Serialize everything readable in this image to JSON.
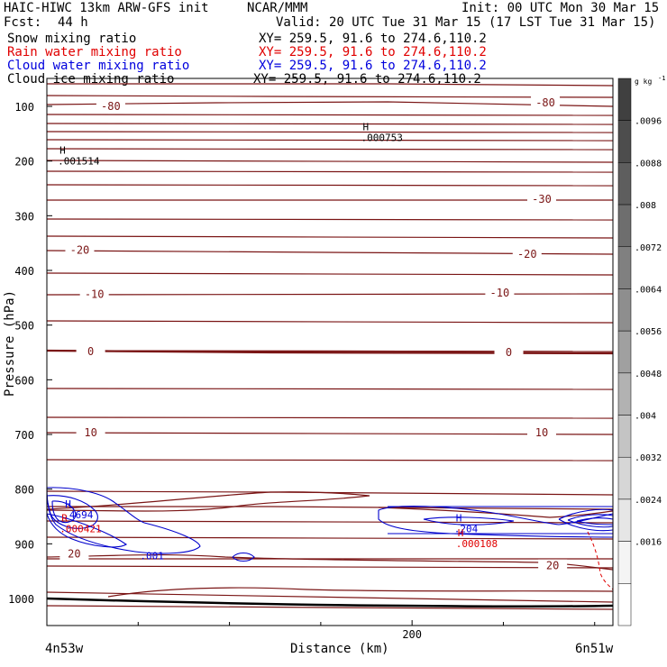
{
  "header": {
    "model": "HAIC-HIWC 13km ARW-GFS init",
    "org": "NCAR/MMM",
    "init": "Init: 00 UTC Mon 30 Mar 15",
    "fcst": "Fcst:",
    "fcst_hours": "44 h",
    "valid": "Valid: 20 UTC Tue 31 Mar 15 (17 LST Tue 31 Mar 15)"
  },
  "fields": [
    {
      "label": "Snow mixing ratio",
      "xy": "XY= 259.5, 91.6 to 274.6,110.2",
      "color": "#000000"
    },
    {
      "label": "Rain water mixing ratio",
      "xy": "XY= 259.5, 91.6 to 274.6,110.2",
      "color": "#e00000"
    },
    {
      "label": "Cloud water mixing ratio",
      "xy": "XY= 259.5, 91.6 to 274.6,110.2",
      "color": "#0000dd"
    },
    {
      "label": "Cloud ice mixing ratio",
      "xy": "XY= 259.5, 91.6 to 274.6,110.2",
      "color": "#000000"
    }
  ],
  "chart_data": {
    "type": "contour",
    "xlabel": "Distance (km)",
    "ylabel": "Pressure (hPa)",
    "x_ticks": [
      0,
      200
    ],
    "x_tick_labels": [
      "",
      "200"
    ],
    "xlim": [
      0,
      310
    ],
    "ylim": [
      1050,
      60
    ],
    "y_ticks": [
      100,
      200,
      300,
      400,
      500,
      600,
      700,
      800,
      900,
      1000
    ],
    "endpoint_left": "4n53w",
    "endpoint_right": "6n51w",
    "temperature_contour_labels": [
      {
        "text": "-80",
        "x": 35,
        "p": 100
      },
      {
        "text": "-80",
        "x": 273,
        "p": 93
      },
      {
        "text": "-30",
        "x": 271,
        "p": 270
      },
      {
        "text": "-20",
        "x": 18,
        "p": 363
      },
      {
        "text": "-20",
        "x": 263,
        "p": 370
      },
      {
        "text": "-10",
        "x": 26,
        "p": 444
      },
      {
        "text": "-10",
        "x": 248,
        "p": 441
      },
      {
        "text": "0",
        "x": 24,
        "p": 548
      },
      {
        "text": "0",
        "x": 253,
        "p": 550
      },
      {
        "text": "10",
        "x": 24,
        "p": 697
      },
      {
        "text": "10",
        "x": 271,
        "p": 697
      },
      {
        "text": "20",
        "x": 15,
        "p": 918
      },
      {
        "text": "20",
        "x": 277,
        "p": 940
      }
    ],
    "extrema_labels": [
      {
        "mark": "H",
        "value": ".000753",
        "x": 173,
        "p": 150,
        "color": "#000000"
      },
      {
        "mark": "H",
        "value": ".001514",
        "x": 7,
        "p": 193,
        "color": "#000000"
      },
      {
        "mark": "H",
        "value": ".4694",
        "x": 10,
        "p": 840,
        "color": "#0000dd"
      },
      {
        "mark": "R",
        "value": ".000421",
        "x": 8,
        "p": 866,
        "color": "#e00000"
      },
      {
        "mark": "H",
        "value": ".204",
        "x": 224,
        "p": 866,
        "color": "#0000dd"
      },
      {
        "mark": "H",
        "value": ".000108",
        "x": 225,
        "p": 893,
        "color": "#e00000"
      },
      {
        "mark": "",
        "value": ".001",
        "x": 52,
        "p": 915,
        "color": "#0000dd"
      }
    ],
    "colorbar": {
      "unit": "g kg",
      "unit_exp": "-1",
      "ticks": [
        ".0096",
        ".0088",
        ".008",
        ".0072",
        ".0064",
        ".0056",
        ".0048",
        ".004",
        ".0032",
        ".0024",
        ".0016"
      ],
      "colors": [
        "#404040",
        "#4d4d4d",
        "#5e5e5e",
        "#6e6e6e",
        "#808080",
        "#8e8e8e",
        "#a0a0a0",
        "#b2b2b2",
        "#c4c4c4",
        "#d6d6d6",
        "#e6e6e6",
        "#f4f4f4",
        "#ffffff"
      ]
    }
  }
}
